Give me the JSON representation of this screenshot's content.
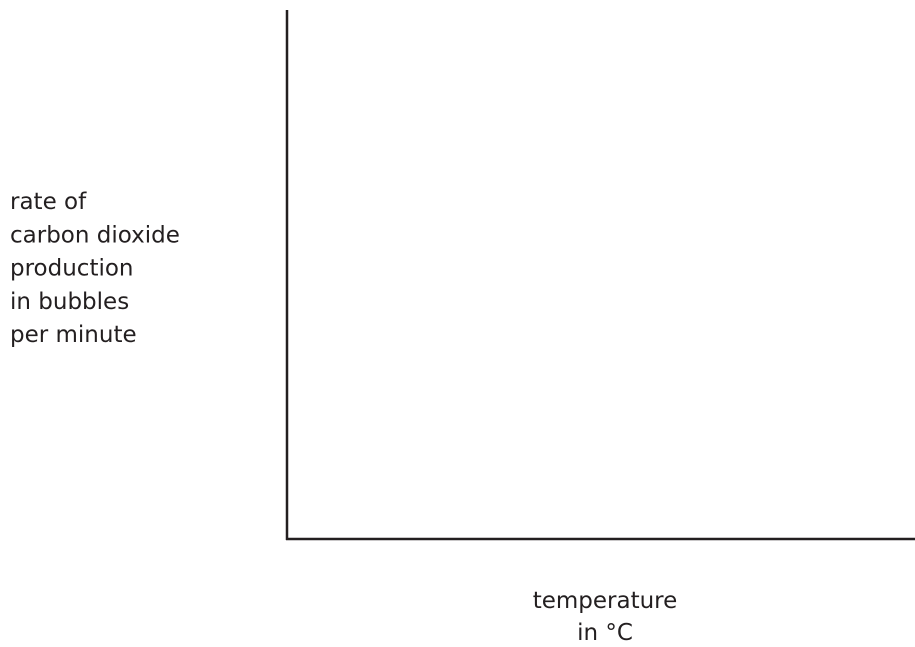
{
  "y_axis_label": [
    "rate of",
    "carbon dioxide",
    "production",
    "in bubbles",
    "per minute"
  ],
  "x_axis_label": [
    "temperature",
    "in °C"
  ]
}
